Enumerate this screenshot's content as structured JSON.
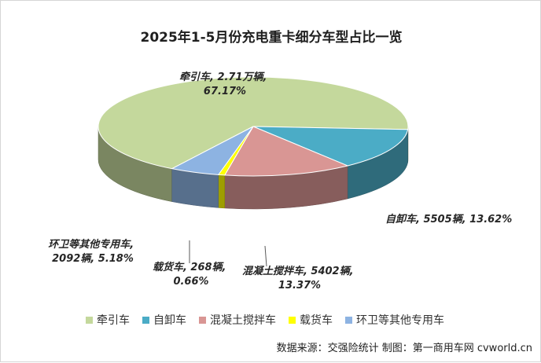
{
  "chart_data": {
    "type": "pie",
    "title": "2025年1-5月份充电重卡细分车型占比一览",
    "series": [
      {
        "name": "牵引车",
        "value_label": "2.71万辆",
        "percent": 67.17,
        "color": "#c4d89c"
      },
      {
        "name": "自卸车",
        "value_label": "5505辆",
        "percent": 13.62,
        "color": "#4bacc6"
      },
      {
        "name": "混凝土搅拌车",
        "value_label": "5402辆",
        "percent": 13.37,
        "color": "#d99694"
      },
      {
        "name": "载货车",
        "value_label": "268辆",
        "percent": 0.66,
        "color": "#ffff00"
      },
      {
        "name": "环卫等其他专用车",
        "value_label": "2092辆",
        "percent": 5.18,
        "color": "#8db3e2"
      }
    ],
    "labels": {
      "traction": [
        "牵引车, 2.71万辆,",
        "67.17%"
      ],
      "dump": [
        "自卸车, 5505辆, 13.62%"
      ],
      "mixer": [
        "混凝土搅拌车, 5402辆,",
        "13.37%"
      ],
      "cargo": [
        "载货车, 268辆,",
        "0.66%"
      ],
      "special": [
        "环卫等其他专用车,",
        "2092辆, 5.18%"
      ]
    },
    "legend_position": "bottom"
  },
  "source_note": "数据来源：交强险统计  制图：第一商用车网 cvworld.cn"
}
